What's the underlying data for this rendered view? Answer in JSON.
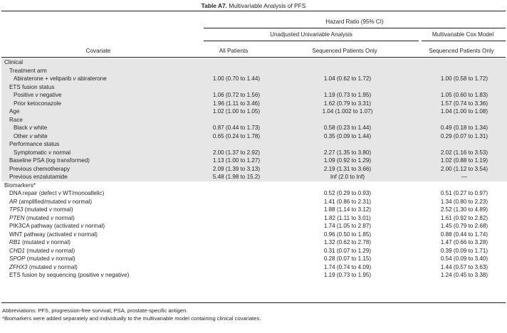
{
  "title": {
    "label": "Table A7.",
    "text": "Multivariable Analysis of PFS"
  },
  "header": {
    "hazard_ratio": "Hazard Ratio (95% CI)",
    "unadjusted": "Unadjusted Univariable Analysis",
    "multivariable": "Multivariable Cox Model",
    "covariate": "Covariate",
    "all_patients": "All Patients",
    "sequenced_only": "Sequenced Patients Only",
    "sequenced_only_mv": "Sequenced Patients Only"
  },
  "rows": [
    {
      "indent": 0,
      "shade": true,
      "parts": [
        {
          "t": "Clinical"
        }
      ],
      "v1": "",
      "v2": "",
      "v3": ""
    },
    {
      "indent": 1,
      "shade": true,
      "parts": [
        {
          "t": "Treatment arm"
        }
      ],
      "v1": "",
      "v2": "",
      "v3": ""
    },
    {
      "indent": 2,
      "shade": true,
      "parts": [
        {
          "t": "Abiraterone + veliparib "
        },
        {
          "t": "v",
          "i": true
        },
        {
          "t": " abiraterone"
        }
      ],
      "v1": "1.00 (0.70 to 1.44)",
      "v2": "1.04 (0.62 to 1.72)",
      "v3": "1.00 (0.58 to 1.72)"
    },
    {
      "indent": 1,
      "shade": true,
      "parts": [
        {
          "t": "ETS fusion status"
        }
      ],
      "v1": "",
      "v2": "",
      "v3": ""
    },
    {
      "indent": 2,
      "shade": true,
      "parts": [
        {
          "t": "Positive "
        },
        {
          "t": "v",
          "i": true
        },
        {
          "t": " negative"
        }
      ],
      "v1": "1.06 (0.72 to 1.56)",
      "v2": "1.19 (0.73 to 1.95)",
      "v3": "1.05 (0.60 to 1.83)"
    },
    {
      "indent": 2,
      "shade": true,
      "parts": [
        {
          "t": "Prior ketoconazole"
        }
      ],
      "v1": "1.96 (1.11 to 3.46)",
      "v2": "1.62 (0.79 to 3.31)",
      "v3": "1.57 (0.74 to 3.36)"
    },
    {
      "indent": 1,
      "shade": true,
      "parts": [
        {
          "t": "Age"
        }
      ],
      "v1": "1.02 (1.00 to 1.05)",
      "v2": "1.04 (1.002 to 1.07)",
      "v3": "1.04 (1.00 to 1.08)"
    },
    {
      "indent": 1,
      "shade": true,
      "parts": [
        {
          "t": "Race"
        }
      ],
      "v1": "",
      "v2": "",
      "v3": ""
    },
    {
      "indent": 2,
      "shade": true,
      "parts": [
        {
          "t": "Black "
        },
        {
          "t": "v",
          "i": true
        },
        {
          "t": " white"
        }
      ],
      "v1": "0.87 (0.44 to 1.73)",
      "v2": "0.58 (0.23 to 1.44)",
      "v3": "0.49 (0.18 to 1.34)"
    },
    {
      "indent": 2,
      "shade": true,
      "parts": [
        {
          "t": "Other "
        },
        {
          "t": "v",
          "i": true
        },
        {
          "t": " white"
        }
      ],
      "v1": "0.65 (0.24 to 1.78)",
      "v2": "0.35 (0.09 to 1.44)",
      "v3": "0.29 (0.07 to 1.31)"
    },
    {
      "indent": 1,
      "shade": true,
      "parts": [
        {
          "t": "Performance status"
        }
      ],
      "v1": "",
      "v2": "",
      "v3": ""
    },
    {
      "indent": 2,
      "shade": true,
      "parts": [
        {
          "t": "Symptomatic "
        },
        {
          "t": "v",
          "i": true
        },
        {
          "t": " normal"
        }
      ],
      "v1": "2.00 (1.37 to 2.92)",
      "v2": "2.27 (1.35 to 3.80)",
      "v3": "2.02 (1.16 to 3.53)"
    },
    {
      "indent": 1,
      "shade": true,
      "parts": [
        {
          "t": "Baseline PSA (log transformed)"
        }
      ],
      "v1": "1.13 (1.00 to 1.27)",
      "v2": "1.09 (0.92 to 1.29)",
      "v3": "1.02 (0.88 to 1.19)"
    },
    {
      "indent": 1,
      "shade": true,
      "parts": [
        {
          "t": "Previous chemotherapy"
        }
      ],
      "v1": "2.09 (1.39 to 3.13)",
      "v2": "2.19 (1.31 to 3.66)",
      "v3": "2.00 (1.12 to 3.54)"
    },
    {
      "indent": 1,
      "shade": true,
      "parts": [
        {
          "t": "Previous enzalutamide"
        }
      ],
      "v1": "5.48 (1.98 to 15.2)",
      "v2": "Inf (2.0 to Inf)",
      "v3": "—"
    },
    {
      "indent": 0,
      "shade": false,
      "parts": [
        {
          "t": "Biomarkers*"
        }
      ],
      "v1": "",
      "v2": "",
      "v3": ""
    },
    {
      "indent": 1,
      "shade": false,
      "parts": [
        {
          "t": "DNA repair (defect "
        },
        {
          "t": "v",
          "i": true
        },
        {
          "t": " WT/monoallelic)"
        }
      ],
      "v1": "",
      "v2": "0.52 (0.29 to 0.93)",
      "v3": "0.51 (0.27 to 0.97)"
    },
    {
      "indent": 1,
      "shade": false,
      "parts": [
        {
          "t": "AR",
          "i": true
        },
        {
          "t": " (amplified/mutated "
        },
        {
          "t": "v",
          "i": true
        },
        {
          "t": " normal)"
        }
      ],
      "v1": "",
      "v2": "1.41 (0.86 to 2.31)",
      "v3": "1.34 (0.80 to 2.23)"
    },
    {
      "indent": 1,
      "shade": false,
      "parts": [
        {
          "t": "TP53",
          "i": true
        },
        {
          "t": " (mutated "
        },
        {
          "t": "v",
          "i": true
        },
        {
          "t": " normal)"
        }
      ],
      "v1": "",
      "v2": "1.88 (1.14 to 3.12)",
      "v3": "2.52 (1.30 to 4.89)"
    },
    {
      "indent": 1,
      "shade": false,
      "parts": [
        {
          "t": "PTEN",
          "i": true
        },
        {
          "t": " (mutated "
        },
        {
          "t": "v",
          "i": true
        },
        {
          "t": " normal)"
        }
      ],
      "v1": "",
      "v2": "1.82 (1.11 to 3.01)",
      "v3": "1.61 (0.92 to 2.82)"
    },
    {
      "indent": 1,
      "shade": false,
      "parts": [
        {
          "t": "PIK3CA pathway (activated "
        },
        {
          "t": "v",
          "i": true
        },
        {
          "t": " normal)"
        }
      ],
      "v1": "",
      "v2": "1.74 (1.05 to 2.87)",
      "v3": "1.45 (0.79 to 2.68)"
    },
    {
      "indent": 1,
      "shade": false,
      "parts": [
        {
          "t": "WNT pathway (activated "
        },
        {
          "t": "v",
          "i": true
        },
        {
          "t": " normal)"
        }
      ],
      "v1": "",
      "v2": "0.96 (0.50 to 1.85)",
      "v3": "0.88 (0.44 to 1.74)"
    },
    {
      "indent": 1,
      "shade": false,
      "parts": [
        {
          "t": "RB1",
          "i": true
        },
        {
          "t": " (mutated "
        },
        {
          "t": "v",
          "i": true
        },
        {
          "t": " normal)"
        }
      ],
      "v1": "",
      "v2": "1.32 (0.62 to 2.78)",
      "v3": "1.47 (0.66 to 3.28)"
    },
    {
      "indent": 1,
      "shade": false,
      "parts": [
        {
          "t": "CHD1",
          "i": true
        },
        {
          "t": " (mutated "
        },
        {
          "t": "v",
          "i": true
        },
        {
          "t": " normal)"
        }
      ],
      "v1": "",
      "v2": "0.31 (0.07 to 1.29)",
      "v3": "0.39 (0.09 to 1.71)"
    },
    {
      "indent": 1,
      "shade": false,
      "parts": [
        {
          "t": "SPOP",
          "i": true
        },
        {
          "t": " (mutated "
        },
        {
          "t": "v",
          "i": true
        },
        {
          "t": " normal)"
        }
      ],
      "v1": "",
      "v2": "0.28 (0.07 to 1.15)",
      "v3": "0.54 (0.09 to 3.40)"
    },
    {
      "indent": 1,
      "shade": false,
      "parts": [
        {
          "t": "ZFHX3",
          "i": true
        },
        {
          "t": " (mutated "
        },
        {
          "t": "v",
          "i": true
        },
        {
          "t": " normal)"
        }
      ],
      "v1": "",
      "v2": "1.74 (0.74 to 4.09)",
      "v3": "1.44 (0.57 to 3.63)"
    },
    {
      "indent": 1,
      "shade": false,
      "parts": [
        {
          "t": "ETS fusion by sequencing (positive "
        },
        {
          "t": "v",
          "i": true
        },
        {
          "t": " negative)"
        }
      ],
      "v1": "",
      "v2": "1.19 (0.73 to 1.95)",
      "v3": "1.24 (0.45 to 3.38)"
    }
  ],
  "footnotes": {
    "abbreviations": "Abbreviations: PFS, progression-free survival; PSA, prostate-specific antigen.",
    "biomarkers_note": "*Biomarkers were added separately and individually to the multivariable model containing clinical covariates."
  },
  "colors": {
    "shade": "#e6e6e6",
    "text": "#231f20"
  }
}
